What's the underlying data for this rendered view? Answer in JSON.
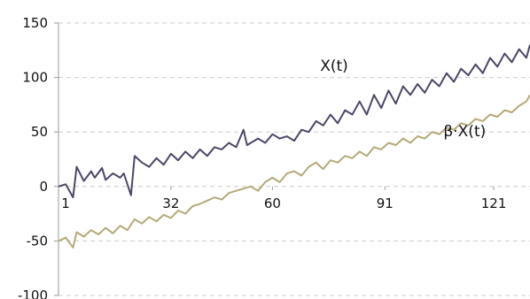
{
  "chart_data": {
    "type": "line",
    "title": "",
    "xlabel": "",
    "ylabel": "",
    "ylim": [
      -100,
      150
    ],
    "xlim": [
      1,
      131
    ],
    "y_ticks": [
      "150",
      "100",
      "50",
      "0",
      "-50",
      "-100"
    ],
    "y_tick_values": [
      150,
      100,
      50,
      0,
      -50,
      -100
    ],
    "x_ticks": [
      "1",
      "32",
      "60",
      "91",
      "121"
    ],
    "x_tick_values": [
      1,
      32,
      60,
      91,
      121
    ],
    "grid": "horizontal-dashed",
    "legend": "none",
    "colors": {
      "grid": "#cccccc",
      "axis": "#999999"
    },
    "series": [
      {
        "name": "X(t)",
        "color": "#4a4868",
        "label_at": [
          77,
          106
        ],
        "points": [
          [
            1,
            0
          ],
          [
            3,
            2
          ],
          [
            5,
            -10
          ],
          [
            6,
            18
          ],
          [
            8,
            5
          ],
          [
            10,
            14
          ],
          [
            11,
            8
          ],
          [
            13,
            17
          ],
          [
            14,
            6
          ],
          [
            16,
            12
          ],
          [
            18,
            8
          ],
          [
            19,
            12
          ],
          [
            21,
            -8
          ],
          [
            22,
            28
          ],
          [
            24,
            22
          ],
          [
            26,
            18
          ],
          [
            28,
            26
          ],
          [
            30,
            20
          ],
          [
            32,
            30
          ],
          [
            34,
            24
          ],
          [
            36,
            32
          ],
          [
            38,
            26
          ],
          [
            40,
            34
          ],
          [
            42,
            28
          ],
          [
            44,
            36
          ],
          [
            46,
            34
          ],
          [
            48,
            40
          ],
          [
            50,
            36
          ],
          [
            52,
            52
          ],
          [
            53,
            38
          ],
          [
            56,
            44
          ],
          [
            58,
            40
          ],
          [
            60,
            48
          ],
          [
            62,
            44
          ],
          [
            64,
            46
          ],
          [
            66,
            42
          ],
          [
            68,
            52
          ],
          [
            70,
            50
          ],
          [
            72,
            60
          ],
          [
            74,
            56
          ],
          [
            76,
            66
          ],
          [
            78,
            58
          ],
          [
            80,
            70
          ],
          [
            82,
            66
          ],
          [
            84,
            78
          ],
          [
            86,
            66
          ],
          [
            88,
            84
          ],
          [
            90,
            72
          ],
          [
            92,
            88
          ],
          [
            94,
            76
          ],
          [
            96,
            92
          ],
          [
            98,
            84
          ],
          [
            100,
            94
          ],
          [
            102,
            86
          ],
          [
            104,
            98
          ],
          [
            106,
            92
          ],
          [
            108,
            104
          ],
          [
            110,
            96
          ],
          [
            112,
            108
          ],
          [
            114,
            102
          ],
          [
            116,
            112
          ],
          [
            118,
            104
          ],
          [
            120,
            118
          ],
          [
            122,
            110
          ],
          [
            124,
            122
          ],
          [
            126,
            114
          ],
          [
            128,
            126
          ],
          [
            130,
            118
          ],
          [
            131,
            130
          ]
        ]
      },
      {
        "name": "β·X(t)",
        "color": "#b3aa78",
        "label_at": [
          113,
          46
        ],
        "points": [
          [
            1,
            -50
          ],
          [
            3,
            -47
          ],
          [
            5,
            -56
          ],
          [
            6,
            -42
          ],
          [
            8,
            -46
          ],
          [
            10,
            -40
          ],
          [
            12,
            -44
          ],
          [
            14,
            -38
          ],
          [
            16,
            -43
          ],
          [
            18,
            -36
          ],
          [
            20,
            -40
          ],
          [
            22,
            -30
          ],
          [
            24,
            -34
          ],
          [
            26,
            -28
          ],
          [
            28,
            -32
          ],
          [
            30,
            -26
          ],
          [
            32,
            -29
          ],
          [
            34,
            -22
          ],
          [
            36,
            -25
          ],
          [
            38,
            -18
          ],
          [
            40,
            -16
          ],
          [
            42,
            -13
          ],
          [
            44,
            -10
          ],
          [
            46,
            -12
          ],
          [
            48,
            -6
          ],
          [
            50,
            -4
          ],
          [
            52,
            -2
          ],
          [
            54,
            0
          ],
          [
            56,
            -4
          ],
          [
            58,
            4
          ],
          [
            60,
            8
          ],
          [
            62,
            4
          ],
          [
            64,
            12
          ],
          [
            66,
            14
          ],
          [
            68,
            10
          ],
          [
            70,
            18
          ],
          [
            72,
            22
          ],
          [
            74,
            16
          ],
          [
            76,
            24
          ],
          [
            78,
            22
          ],
          [
            80,
            28
          ],
          [
            82,
            26
          ],
          [
            84,
            32
          ],
          [
            86,
            28
          ],
          [
            88,
            36
          ],
          [
            90,
            34
          ],
          [
            92,
            40
          ],
          [
            94,
            38
          ],
          [
            96,
            44
          ],
          [
            98,
            40
          ],
          [
            100,
            46
          ],
          [
            102,
            44
          ],
          [
            104,
            50
          ],
          [
            106,
            48
          ],
          [
            108,
            54
          ],
          [
            110,
            52
          ],
          [
            112,
            58
          ],
          [
            114,
            56
          ],
          [
            116,
            62
          ],
          [
            118,
            60
          ],
          [
            120,
            66
          ],
          [
            122,
            64
          ],
          [
            124,
            70
          ],
          [
            126,
            68
          ],
          [
            128,
            74
          ],
          [
            130,
            78
          ],
          [
            131,
            84
          ]
        ]
      }
    ]
  }
}
